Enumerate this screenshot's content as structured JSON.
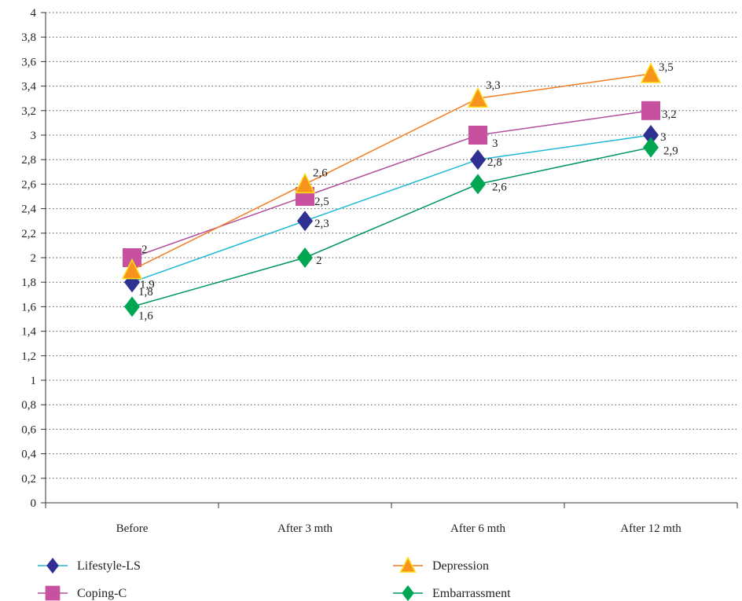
{
  "chart_data": {
    "type": "line",
    "categories": [
      "Before",
      "After 3 mth",
      "After 6 mth",
      "After 12 mth"
    ],
    "ylim": [
      0,
      4
    ],
    "y_ticks": [
      "0",
      "0,2",
      "0,4",
      "0,6",
      "0,8",
      "1",
      "1,2",
      "1,4",
      "1,6",
      "1,8",
      "2",
      "2,2",
      "2,4",
      "2,6",
      "2,8",
      "3",
      "3,2",
      "3,4",
      "3,6",
      "3,8",
      "4"
    ],
    "grid": "horizontal dotted",
    "legend_position": "bottom",
    "series": [
      {
        "name": "Lifestyle-LS",
        "values": [
          1.8,
          2.3,
          2.8,
          3.0
        ],
        "labels": [
          "1,8",
          "2,3",
          "2,8",
          "3"
        ],
        "marker": "diamond",
        "line_color": "#1fb8d6",
        "marker_color": "#2e3192"
      },
      {
        "name": "Coping-C",
        "values": [
          2.0,
          2.5,
          3.0,
          3.2
        ],
        "labels": [
          "2",
          "2,5",
          "3",
          "3,2"
        ],
        "marker": "square",
        "line_color": "#b0509c",
        "marker_color": "#c7509f"
      },
      {
        "name": "Depression",
        "values": [
          1.9,
          2.6,
          3.3,
          3.5
        ],
        "labels": [
          "1,9",
          "2,6",
          "3,3",
          "3,5"
        ],
        "marker": "triangle",
        "line_color": "#f47b20",
        "marker_color": "#f7941d",
        "marker_stroke": "#ffde17"
      },
      {
        "name": "Embarrassment",
        "values": [
          1.6,
          2.0,
          2.6,
          2.9
        ],
        "labels": [
          "1,6",
          "2",
          "2,6",
          "2,9"
        ],
        "marker": "diamond",
        "line_color": "#00965e",
        "marker_color": "#00a651"
      }
    ]
  }
}
